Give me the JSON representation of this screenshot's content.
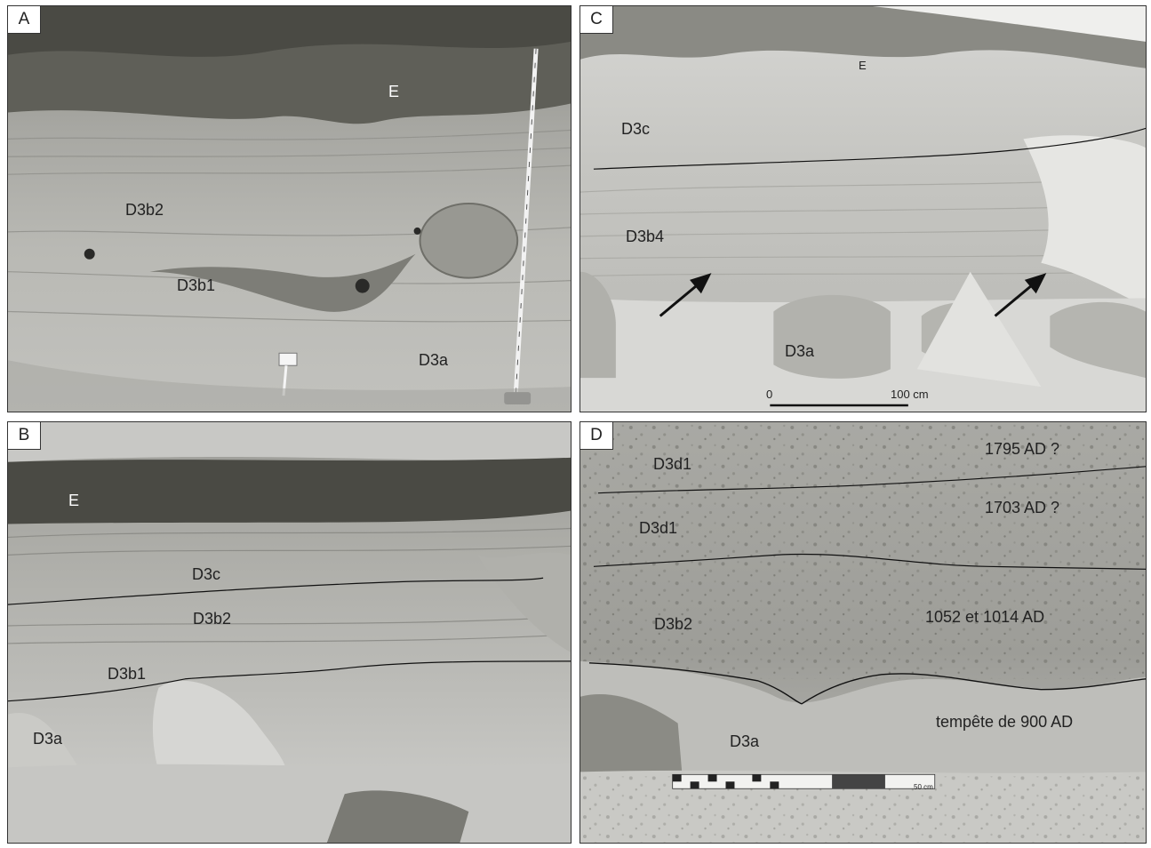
{
  "panels": {
    "a": {
      "letter": "A",
      "labels": {
        "e": "E",
        "d3b2": "D3b2",
        "d3b1": "D3b1",
        "d3a": "D3a"
      }
    },
    "b": {
      "letter": "B",
      "labels": {
        "e": "E",
        "d3c": "D3c",
        "d3b2": "D3b2",
        "d3b1": "D3b1",
        "d3a": "D3a"
      }
    },
    "c": {
      "letter": "C",
      "labels": {
        "e": "E",
        "d3c": "D3c",
        "d3b4": "D3b4",
        "d3a": "D3a",
        "scale_zero": "0",
        "scale_end": "100 cm"
      }
    },
    "d": {
      "letter": "D",
      "labels": {
        "d3d1_top": "D3d1",
        "d3d1_mid": "D3d1",
        "d3b2": "D3b2",
        "d3a": "D3a",
        "date_1795": "1795 AD ?",
        "date_1703": "1703 AD ?",
        "date_1052": "1052  et 1014 AD",
        "storm_900": "tempête de 900 AD",
        "scale": "50 cm"
      }
    }
  },
  "colors": {
    "border": "#333333",
    "label_text": "#222222",
    "panel_label_bg": "#ffffff"
  }
}
